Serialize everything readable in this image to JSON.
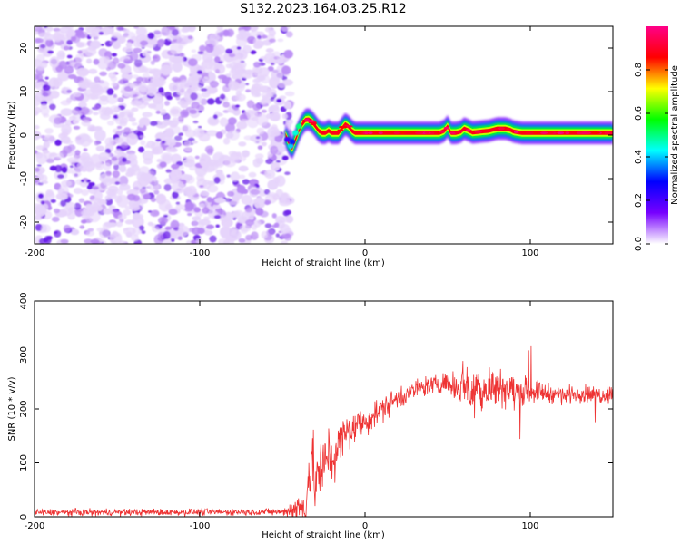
{
  "title": "S132.2023.164.03.25.R12",
  "chart_data": [
    {
      "type": "heatmap",
      "xlabel": "Height of straight line (km)",
      "ylabel": "Frequency (Hz)",
      "xlim": [
        -200,
        150
      ],
      "ylim": [
        -25,
        25
      ],
      "xticks": [
        -200,
        -100,
        0,
        100
      ],
      "yticks": [
        -20,
        -10,
        0,
        10,
        20
      ],
      "grid": false,
      "noise_region": {
        "x": [
          -200,
          -45
        ],
        "y": [
          -25,
          25
        ]
      },
      "signal_path": {
        "x": [
          -48,
          -46,
          -44,
          -42,
          -40,
          -38,
          -36,
          -34,
          -32,
          -30,
          -28,
          -26,
          -24,
          -22,
          -20,
          -18,
          -16,
          -14,
          -12,
          -10,
          -8,
          -6,
          -4,
          -2,
          0,
          5,
          10,
          15,
          20,
          25,
          30,
          35,
          40,
          45,
          48,
          50,
          52,
          55,
          58,
          60,
          62,
          65,
          70,
          75,
          80,
          85,
          88,
          90,
          95,
          100,
          110,
          120,
          130,
          140,
          150
        ],
        "y": [
          0,
          -2,
          -3,
          -1,
          1,
          2.5,
          3.5,
          3.6,
          3,
          2,
          1,
          0.5,
          0.5,
          1,
          0.5,
          0.5,
          0.5,
          1.5,
          2.5,
          2,
          1,
          0.5,
          0.5,
          0.5,
          0.5,
          0.5,
          0.5,
          0.5,
          0.5,
          0.5,
          0.5,
          0.5,
          0.5,
          0.5,
          1,
          2,
          0.5,
          0.5,
          0.8,
          1.5,
          1.2,
          0.6,
          0.8,
          1,
          1.5,
          1.5,
          1.2,
          0.8,
          0.5,
          0.5,
          0.5,
          0.5,
          0.5,
          0.5,
          0.5
        ]
      },
      "colorbar": {
        "label": "Normalized spectral amplitude",
        "range": [
          0,
          1
        ],
        "ticks": [
          0.0,
          0.2,
          0.4,
          0.6,
          0.8
        ],
        "tick_labels": [
          "0.0",
          "0.2",
          "0.4",
          "0.6",
          "0.8"
        ],
        "colormap": [
          "#ffffff",
          "#7700ff",
          "#0000ff",
          "#00ffff",
          "#00ff00",
          "#ffff00",
          "#ff0000",
          "#ff0088"
        ]
      }
    },
    {
      "type": "line",
      "xlabel": "Height of straight line (km)",
      "ylabel": "SNR (10 * v/v)",
      "xlim": [
        -200,
        150
      ],
      "ylim": [
        0,
        400
      ],
      "xticks": [
        -200,
        -100,
        0,
        100
      ],
      "yticks": [
        0,
        100,
        200,
        300,
        400
      ],
      "grid": false,
      "series": [
        {
          "color": "#ee3333",
          "envelope": {
            "x": [
              -200,
              -50,
              -36,
              -34,
              -32,
              -30,
              -28,
              -26,
              -24,
              -22,
              -20,
              -15,
              -10,
              -5,
              0,
              10,
              20,
              30,
              40,
              50,
              55,
              60,
              65,
              70,
              75,
              80,
              85,
              90,
              100,
              110,
              120,
              130,
              140,
              150
            ],
            "mean": [
              8,
              9,
              20,
              80,
              95,
              60,
              90,
              70,
              110,
              120,
              100,
              140,
              160,
              170,
              175,
              200,
              220,
              235,
              245,
              250,
              240,
              250,
              230,
              240,
              235,
              245,
              240,
              230,
              235,
              230,
              225,
              230,
              225,
              230
            ],
            "noise": [
              7,
              7,
              40,
              70,
              80,
              70,
              70,
              70,
              60,
              60,
              50,
              45,
              40,
              35,
              30,
              25,
              25,
              20,
              20,
              20,
              30,
              45,
              55,
              55,
              45,
              40,
              40,
              35,
              25,
              20,
              18,
              18,
              18,
              18
            ]
          }
        }
      ]
    }
  ]
}
